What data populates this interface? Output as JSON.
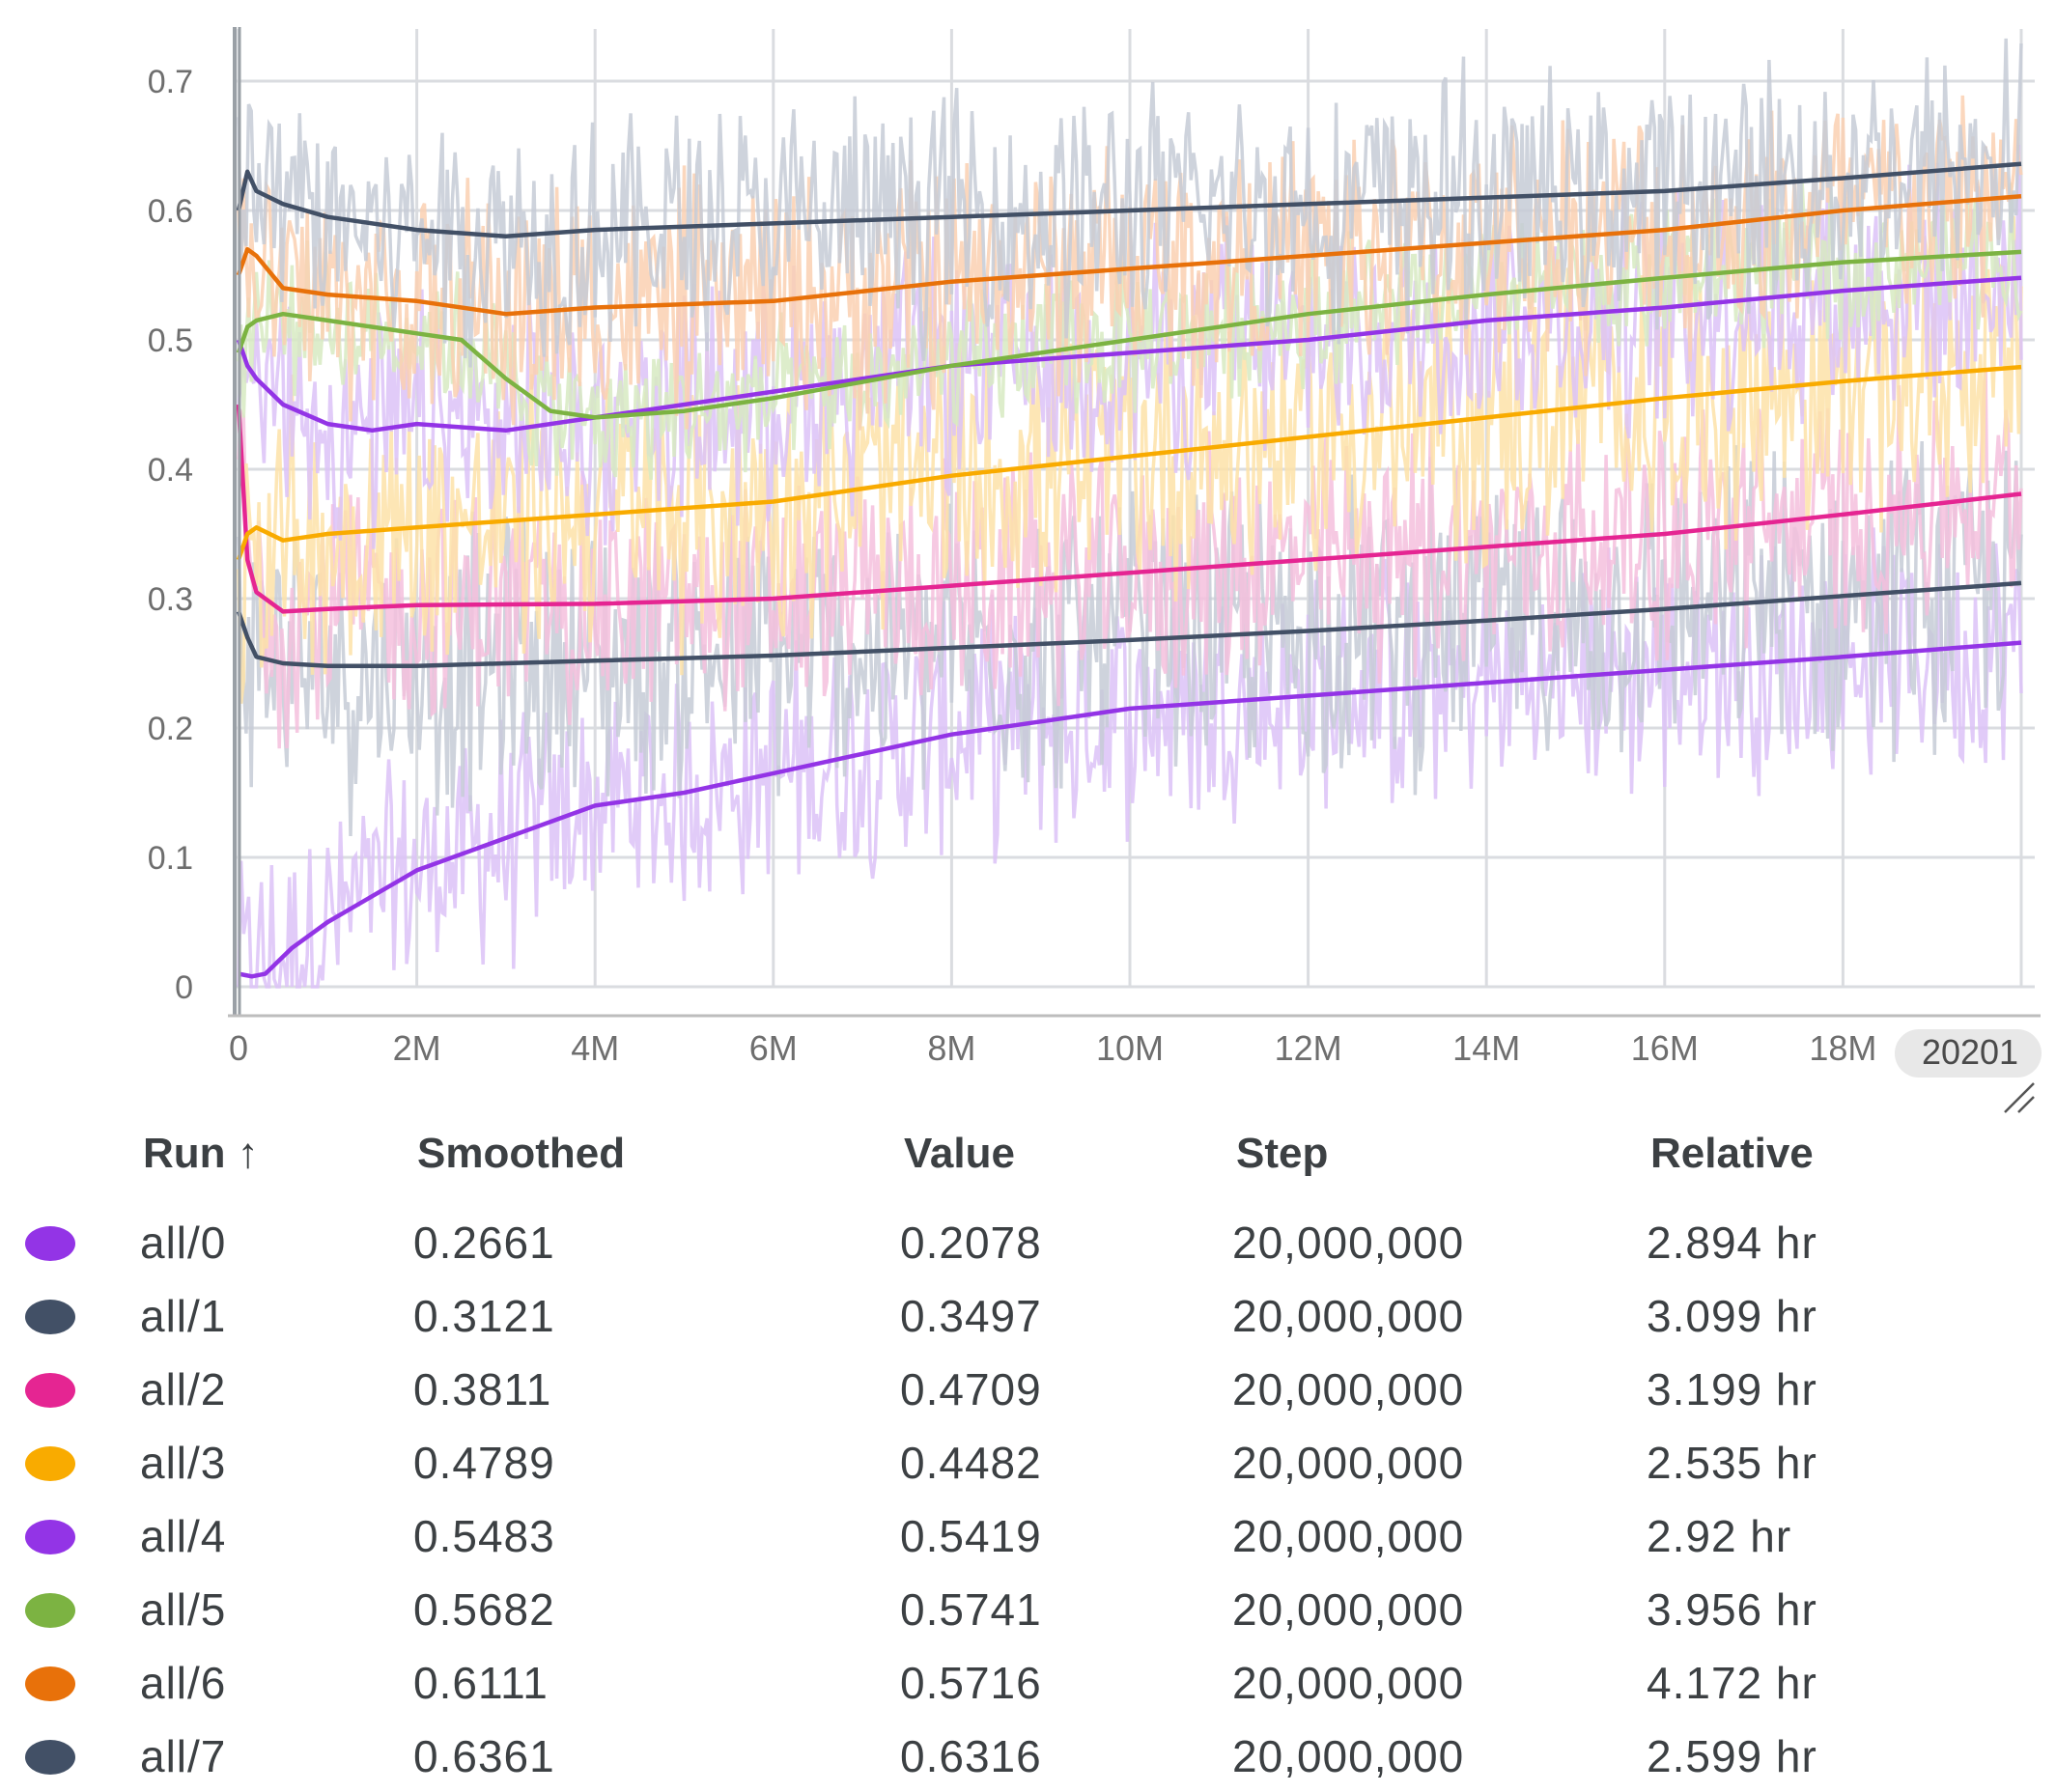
{
  "chart_data": {
    "type": "line",
    "title": "",
    "xlabel": "",
    "ylabel": "",
    "xlim": [
      0,
      20000000
    ],
    "ylim": [
      0,
      0.7
    ],
    "x_ticks": [
      "0",
      "2M",
      "4M",
      "6M",
      "8M",
      "10M",
      "12M",
      "14M",
      "16M",
      "18M"
    ],
    "x_tick_values": [
      0,
      2000000,
      4000000,
      6000000,
      8000000,
      10000000,
      12000000,
      14000000,
      16000000,
      18000000
    ],
    "x_edge_label": "20201",
    "y_ticks": [
      "0",
      "0.1",
      "0.2",
      "0.3",
      "0.4",
      "0.5",
      "0.6",
      "0.7"
    ],
    "y_tick_values": [
      0,
      0.1,
      0.2,
      0.3,
      0.4,
      0.5,
      0.6,
      0.7
    ],
    "grid": true,
    "series": [
      {
        "name": "all/0",
        "color": "#9334e6",
        "raw_color": "#dcc2f7",
        "noise": 0.05,
        "x": [
          0,
          150000,
          300000,
          600000,
          1000000,
          1500000,
          2000000,
          3000000,
          4000000,
          5000000,
          6000000,
          7000000,
          8000000,
          9000000,
          10000000,
          12000000,
          14000000,
          16000000,
          18000000,
          20000000
        ],
        "smoothed": [
          0.01,
          0.008,
          0.01,
          0.03,
          0.05,
          0.07,
          0.09,
          0.115,
          0.14,
          0.15,
          0.165,
          0.18,
          0.195,
          0.205,
          0.215,
          0.225,
          0.235,
          0.245,
          0.255,
          0.266
        ]
      },
      {
        "name": "all/1",
        "color": "#425066",
        "raw_color": "#c5cbd6",
        "noise": 0.06,
        "x": [
          0,
          100000,
          200000,
          500000,
          1000000,
          2000000,
          3000000,
          4000000,
          6000000,
          8000000,
          10000000,
          12000000,
          14000000,
          16000000,
          18000000,
          20000000
        ],
        "smoothed": [
          0.29,
          0.27,
          0.255,
          0.25,
          0.248,
          0.248,
          0.25,
          0.252,
          0.256,
          0.262,
          0.268,
          0.275,
          0.283,
          0.292,
          0.302,
          0.312
        ]
      },
      {
        "name": "all/2",
        "color": "#e52592",
        "raw_color": "#f5bfdd",
        "noise": 0.05,
        "x": [
          0,
          100000,
          200000,
          500000,
          1000000,
          2000000,
          4000000,
          6000000,
          8000000,
          10000000,
          12000000,
          14000000,
          16000000,
          18000000,
          20000000
        ],
        "smoothed": [
          0.45,
          0.33,
          0.305,
          0.29,
          0.292,
          0.295,
          0.296,
          0.3,
          0.31,
          0.32,
          0.33,
          0.34,
          0.35,
          0.365,
          0.381
        ]
      },
      {
        "name": "all/3",
        "color": "#f9ab00",
        "raw_color": "#fde2a8",
        "noise": 0.06,
        "x": [
          0,
          100000,
          200000,
          500000,
          1000000,
          2000000,
          4000000,
          6000000,
          8000000,
          10000000,
          12000000,
          14000000,
          16000000,
          18000000,
          20000000
        ],
        "smoothed": [
          0.33,
          0.35,
          0.355,
          0.345,
          0.35,
          0.355,
          0.365,
          0.375,
          0.395,
          0.41,
          0.425,
          0.44,
          0.455,
          0.468,
          0.479
        ]
      },
      {
        "name": "all/4",
        "color": "#9334e6",
        "raw_color": "#dcc2f7",
        "noise": 0.05,
        "x": [
          0,
          100000,
          200000,
          500000,
          1000000,
          1500000,
          2000000,
          3000000,
          4000000,
          6000000,
          8000000,
          10000000,
          12000000,
          14000000,
          16000000,
          18000000,
          20000000
        ],
        "smoothed": [
          0.5,
          0.48,
          0.47,
          0.45,
          0.435,
          0.43,
          0.435,
          0.43,
          0.44,
          0.46,
          0.48,
          0.49,
          0.5,
          0.515,
          0.525,
          0.538,
          0.548
        ]
      },
      {
        "name": "all/5",
        "color": "#7cb342",
        "raw_color": "#d7eac2",
        "noise": 0.03,
        "x": [
          0,
          100000,
          200000,
          500000,
          1000000,
          2000000,
          2500000,
          3000000,
          3500000,
          4000000,
          5000000,
          6000000,
          8000000,
          10000000,
          12000000,
          14000000,
          16000000,
          18000000,
          20000000
        ],
        "smoothed": [
          0.49,
          0.51,
          0.515,
          0.52,
          0.515,
          0.505,
          0.5,
          0.47,
          0.445,
          0.44,
          0.445,
          0.455,
          0.48,
          0.5,
          0.52,
          0.535,
          0.548,
          0.56,
          0.568
        ]
      },
      {
        "name": "all/6",
        "color": "#e8710a",
        "raw_color": "#fad0b1",
        "noise": 0.05,
        "x": [
          0,
          100000,
          200000,
          500000,
          1000000,
          2000000,
          3000000,
          4000000,
          6000000,
          8000000,
          10000000,
          12000000,
          14000000,
          16000000,
          18000000,
          20000000
        ],
        "smoothed": [
          0.55,
          0.57,
          0.565,
          0.54,
          0.535,
          0.53,
          0.52,
          0.525,
          0.53,
          0.545,
          0.555,
          0.565,
          0.575,
          0.585,
          0.6,
          0.611
        ]
      },
      {
        "name": "all/7",
        "color": "#425066",
        "raw_color": "#c5cbd6",
        "noise": 0.05,
        "x": [
          0,
          100000,
          200000,
          500000,
          1000000,
          2000000,
          3000000,
          4000000,
          6000000,
          8000000,
          10000000,
          12000000,
          14000000,
          16000000,
          18000000,
          20000000
        ],
        "smoothed": [
          0.6,
          0.63,
          0.615,
          0.605,
          0.595,
          0.585,
          0.58,
          0.585,
          0.59,
          0.595,
          0.6,
          0.605,
          0.61,
          0.615,
          0.625,
          0.636
        ]
      }
    ]
  },
  "table": {
    "headers": {
      "run": "Run ↑",
      "smoothed": "Smoothed",
      "value": "Value",
      "step": "Step",
      "relative": "Relative"
    },
    "rows": [
      {
        "run": "all/0",
        "color": "#9334e6",
        "smoothed": "0.2661",
        "value": "0.2078",
        "step": "20,000,000",
        "relative": "2.894 hr"
      },
      {
        "run": "all/1",
        "color": "#425066",
        "smoothed": "0.3121",
        "value": "0.3497",
        "step": "20,000,000",
        "relative": "3.099 hr"
      },
      {
        "run": "all/2",
        "color": "#e52592",
        "smoothed": "0.3811",
        "value": "0.4709",
        "step": "20,000,000",
        "relative": "3.199 hr"
      },
      {
        "run": "all/3",
        "color": "#f9ab00",
        "smoothed": "0.4789",
        "value": "0.4482",
        "step": "20,000,000",
        "relative": "2.535 hr"
      },
      {
        "run": "all/4",
        "color": "#9334e6",
        "smoothed": "0.5483",
        "value": "0.5419",
        "step": "20,000,000",
        "relative": "2.92 hr"
      },
      {
        "run": "all/5",
        "color": "#7cb342",
        "smoothed": "0.5682",
        "value": "0.5741",
        "step": "20,000,000",
        "relative": "3.956 hr"
      },
      {
        "run": "all/6",
        "color": "#e8710a",
        "smoothed": "0.6111",
        "value": "0.5716",
        "step": "20,000,000",
        "relative": "4.172 hr"
      },
      {
        "run": "all/7",
        "color": "#425066",
        "smoothed": "0.6361",
        "value": "0.6316",
        "step": "20,000,000",
        "relative": "2.599 hr"
      }
    ]
  }
}
